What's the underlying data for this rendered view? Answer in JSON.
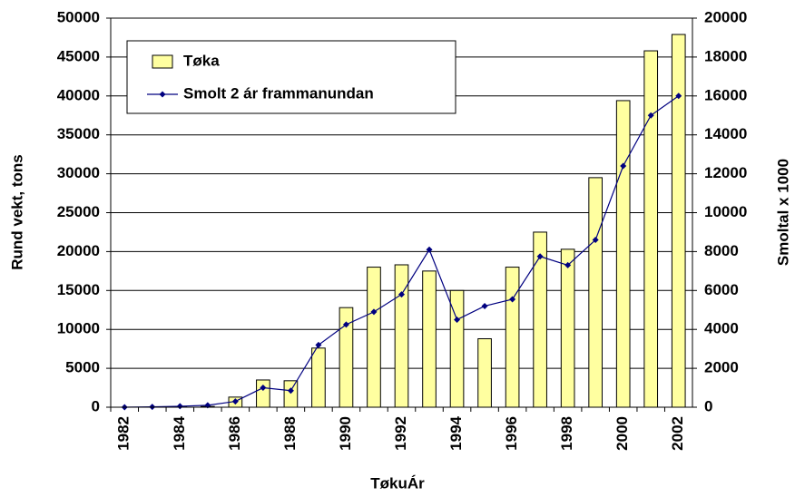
{
  "chart_data": {
    "type": "bar-line",
    "x_label": "TøkuÁr",
    "y_label": "Rund vekt, tons",
    "y2_label": "Smoltal x 1000",
    "categories": [
      1982,
      null,
      1984,
      null,
      1986,
      null,
      1988,
      null,
      1990,
      null,
      1992,
      null,
      1994,
      null,
      1996,
      null,
      1998,
      null,
      2000,
      null,
      2002
    ],
    "series": [
      {
        "name": "Tøka",
        "kind": "bar",
        "color": "#ffffa0",
        "values": [
          0,
          0,
          50,
          100,
          1300,
          3500,
          3400,
          7600,
          12800,
          18000,
          18300,
          17500,
          15000,
          8800,
          18000,
          22500,
          20300,
          29500,
          39400,
          45800,
          47900
        ]
      },
      {
        "name": "Smolt 2 ár frammanundan",
        "kind": "line",
        "axis": "y2",
        "color": "#000080",
        "values": [
          0,
          20,
          50,
          100,
          300,
          1000,
          850,
          3200,
          4250,
          4900,
          5800,
          8100,
          4500,
          5200,
          5550,
          7750,
          7300,
          8600,
          12400,
          15000,
          16000
        ]
      }
    ],
    "ylim": [
      0,
      50000
    ],
    "yticks": [
      0,
      5000,
      10000,
      15000,
      20000,
      25000,
      30000,
      35000,
      40000,
      45000,
      50000
    ],
    "y2lim": [
      0,
      20000
    ],
    "y2ticks": [
      0,
      2000,
      4000,
      6000,
      8000,
      10000,
      12000,
      14000,
      16000,
      18000,
      20000
    ],
    "grid": true,
    "legend": "top-left"
  }
}
